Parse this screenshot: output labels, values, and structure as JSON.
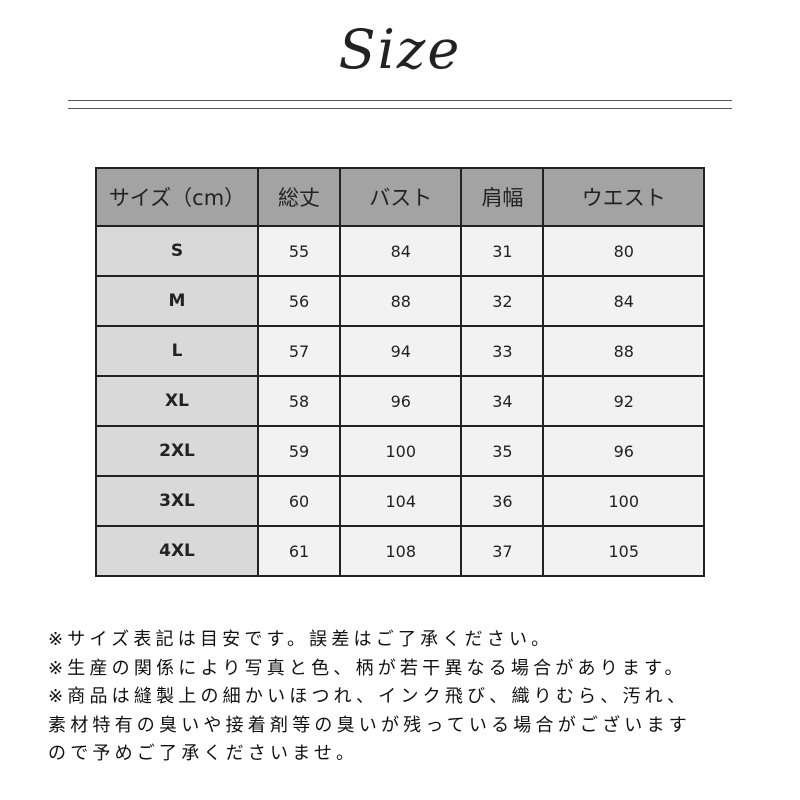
{
  "title": "Size",
  "table": {
    "headers": [
      "サイズ（cm）",
      "総丈",
      "バスト",
      "肩幅",
      "ウエスト"
    ],
    "rows": [
      [
        "S",
        "55",
        "84",
        "31",
        "80"
      ],
      [
        "M",
        "56",
        "88",
        "32",
        "84"
      ],
      [
        "L",
        "57",
        "94",
        "33",
        "88"
      ],
      [
        "XL",
        "58",
        "96",
        "34",
        "92"
      ],
      [
        "2XL",
        "59",
        "100",
        "35",
        "96"
      ],
      [
        "3XL",
        "60",
        "104",
        "36",
        "100"
      ],
      [
        "4XL",
        "61",
        "108",
        "37",
        "105"
      ]
    ]
  },
  "notes": [
    "※サイズ表記は目安です。誤差はご了承ください。",
    "※生産の関係により写真と色、柄が若干異なる場合があります。",
    "※商品は縫製上の細かいほつれ、インク飛び、織りむら、汚れ、",
    "素材特有の臭いや接着剤等の臭いが残っている場合がございます",
    "ので予めご了承くださいませ。"
  ],
  "colors": {
    "header_bg": "#a3a3a3",
    "size_col_bg": "#d9d9d9",
    "cell_bg": "#f2f2f2"
  }
}
